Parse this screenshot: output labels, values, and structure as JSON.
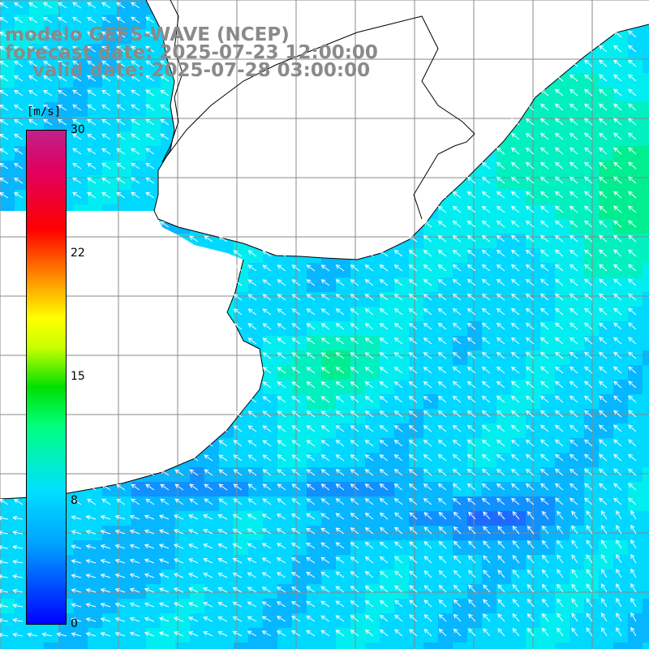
{
  "title": {
    "line1": "modelo GEFS-WAVE (NCEP)",
    "line2": "forecast date: 2025-07-23 12:00:00",
    "line3": "valid date: 2025-07-28 03:00:00"
  },
  "colorbar": {
    "unit": "[m/s]",
    "ticks": [
      "30",
      "22",
      "15",
      "8",
      "0"
    ],
    "tick_values": [
      30,
      22,
      15,
      8,
      0
    ],
    "colors": [
      "#0000ff",
      "#00a0ff",
      "#00e0ff",
      "#00ff80",
      "#00e000",
      "#c8ff00",
      "#ffff00",
      "#ff9000",
      "#ff0000",
      "#e00060",
      "#c0208a"
    ]
  },
  "map": {
    "field": "wind speed",
    "arrow_color": "#ffffff",
    "grid_color": "#888888",
    "land_color": "#ffffff",
    "coast_color": "#000000",
    "wind_speed_range": [
      5,
      12
    ]
  }
}
